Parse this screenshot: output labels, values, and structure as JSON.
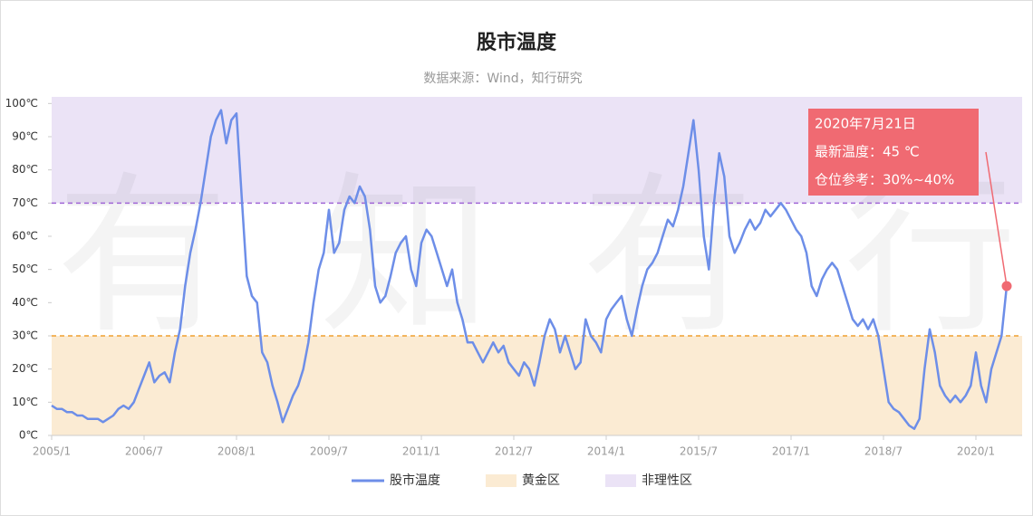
{
  "chart_data": {
    "type": "line",
    "title": "股市温度",
    "subtitle": "数据来源：Wind，知行研究",
    "watermark": "有知有行",
    "x": [
      "2005/1",
      "2005/2",
      "2005/3",
      "2005/4",
      "2005/5",
      "2005/6",
      "2005/7",
      "2005/8",
      "2005/9",
      "2005/10",
      "2005/11",
      "2005/12",
      "2006/1",
      "2006/2",
      "2006/3",
      "2006/4",
      "2006/5",
      "2006/6",
      "2006/7",
      "2006/8",
      "2006/9",
      "2006/10",
      "2006/11",
      "2006/12",
      "2007/1",
      "2007/2",
      "2007/3",
      "2007/4",
      "2007/5",
      "2007/6",
      "2007/7",
      "2007/8",
      "2007/9",
      "2007/10",
      "2007/11",
      "2007/12",
      "2008/1",
      "2008/2",
      "2008/3",
      "2008/4",
      "2008/5",
      "2008/6",
      "2008/7",
      "2008/8",
      "2008/9",
      "2008/10",
      "2008/11",
      "2008/12",
      "2009/1",
      "2009/2",
      "2009/3",
      "2009/4",
      "2009/5",
      "2009/6",
      "2009/7",
      "2009/8",
      "2009/9",
      "2009/10",
      "2009/11",
      "2009/12",
      "2010/1",
      "2010/2",
      "2010/3",
      "2010/4",
      "2010/5",
      "2010/6",
      "2010/7",
      "2010/8",
      "2010/9",
      "2010/10",
      "2010/11",
      "2010/12",
      "2011/1",
      "2011/2",
      "2011/3",
      "2011/4",
      "2011/5",
      "2011/6",
      "2011/7",
      "2011/8",
      "2011/9",
      "2011/10",
      "2011/11",
      "2011/12",
      "2012/1",
      "2012/2",
      "2012/3",
      "2012/4",
      "2012/5",
      "2012/6",
      "2012/7",
      "2012/8",
      "2012/9",
      "2012/10",
      "2012/11",
      "2012/12",
      "2013/1",
      "2013/2",
      "2013/3",
      "2013/4",
      "2013/5",
      "2013/6",
      "2013/7",
      "2013/8",
      "2013/9",
      "2013/10",
      "2013/11",
      "2013/12",
      "2014/1",
      "2014/2",
      "2014/3",
      "2014/4",
      "2014/5",
      "2014/6",
      "2014/7",
      "2014/8",
      "2014/9",
      "2014/10",
      "2014/11",
      "2014/12",
      "2015/1",
      "2015/2",
      "2015/3",
      "2015/4",
      "2015/5",
      "2015/6",
      "2015/7",
      "2015/8",
      "2015/9",
      "2015/10",
      "2015/11",
      "2015/12",
      "2016/1",
      "2016/2",
      "2016/3",
      "2016/4",
      "2016/5",
      "2016/6",
      "2016/7",
      "2016/8",
      "2016/9",
      "2016/10",
      "2016/11",
      "2016/12",
      "2017/1",
      "2017/2",
      "2017/3",
      "2017/4",
      "2017/5",
      "2017/6",
      "2017/7",
      "2017/8",
      "2017/9",
      "2017/10",
      "2017/11",
      "2017/12",
      "2018/1",
      "2018/2",
      "2018/3",
      "2018/4",
      "2018/5",
      "2018/6",
      "2018/7",
      "2018/8",
      "2018/9",
      "2018/10",
      "2018/11",
      "2018/12",
      "2019/1",
      "2019/2",
      "2019/3",
      "2019/4",
      "2019/5",
      "2019/6",
      "2019/7",
      "2019/8",
      "2019/9",
      "2019/10",
      "2019/11",
      "2019/12",
      "2020/1",
      "2020/2",
      "2020/3",
      "2020/4",
      "2020/5",
      "2020/6",
      "2020/7"
    ],
    "series": [
      {
        "name": "股市温度",
        "color": "#6d8ee8",
        "values": [
          9,
          8,
          8,
          7,
          7,
          6,
          6,
          5,
          5,
          5,
          4,
          5,
          6,
          8,
          9,
          8,
          10,
          14,
          18,
          22,
          16,
          18,
          19,
          16,
          25,
          32,
          45,
          55,
          62,
          70,
          80,
          90,
          95,
          98,
          88,
          95,
          97,
          72,
          48,
          42,
          40,
          25,
          22,
          15,
          10,
          4,
          8,
          12,
          15,
          20,
          28,
          40,
          50,
          55,
          68,
          55,
          58,
          68,
          72,
          70,
          75,
          72,
          62,
          45,
          40,
          42,
          48,
          55,
          58,
          60,
          50,
          45,
          58,
          62,
          60,
          55,
          50,
          45,
          50,
          40,
          35,
          28,
          28,
          25,
          22,
          25,
          28,
          25,
          27,
          22,
          20,
          18,
          22,
          20,
          15,
          22,
          30,
          35,
          32,
          25,
          30,
          25,
          20,
          22,
          35,
          30,
          28,
          25,
          35,
          38,
          40,
          42,
          35,
          30,
          38,
          45,
          50,
          52,
          55,
          60,
          65,
          63,
          68,
          75,
          85,
          95,
          80,
          60,
          50,
          70,
          85,
          78,
          60,
          55,
          58,
          62,
          65,
          62,
          64,
          68,
          66,
          68,
          70,
          68,
          65,
          62,
          60,
          55,
          45,
          42,
          47,
          50,
          52,
          50,
          45,
          40,
          35,
          33,
          35,
          32,
          35,
          30,
          20,
          10,
          8,
          7,
          5,
          3,
          2,
          5,
          20,
          32,
          25,
          15,
          12,
          10,
          12,
          10,
          12,
          15,
          25,
          15,
          10,
          20,
          25,
          30,
          45
        ]
      }
    ],
    "bands": [
      {
        "name": "黄金区",
        "color": "#fbebd3",
        "line_color": "#f0a030",
        "range": [
          0,
          30
        ]
      },
      {
        "name": "非理性区",
        "color": "#ebe3f6",
        "line_color": "#a166d6",
        "range": [
          70,
          102
        ]
      }
    ],
    "xlim": [
      "2005/1",
      "2020/10"
    ],
    "xticks": [
      "2005/1",
      "2006/7",
      "2008/1",
      "2009/7",
      "2011/1",
      "2012/7",
      "2014/1",
      "2015/7",
      "2017/1",
      "2018/7",
      "2020/1"
    ],
    "ylim": [
      0,
      102
    ],
    "yticks": [
      {
        "value": 0,
        "label": "0℃"
      },
      {
        "value": 10,
        "label": "10℃"
      },
      {
        "value": 20,
        "label": "20℃"
      },
      {
        "value": 30,
        "label": "30℃"
      },
      {
        "value": 40,
        "label": "40℃"
      },
      {
        "value": 50,
        "label": "50℃"
      },
      {
        "value": 60,
        "label": "60℃"
      },
      {
        "value": 70,
        "label": "70℃"
      },
      {
        "value": 80,
        "label": "80℃"
      },
      {
        "value": 90,
        "label": "90℃"
      },
      {
        "value": 100,
        "label": "100℃"
      }
    ],
    "annotation": {
      "lines": [
        "2020年7月21日",
        "最新温度：45 ℃",
        "仓位参考：30%~40%"
      ],
      "color": "#f06a72"
    }
  }
}
